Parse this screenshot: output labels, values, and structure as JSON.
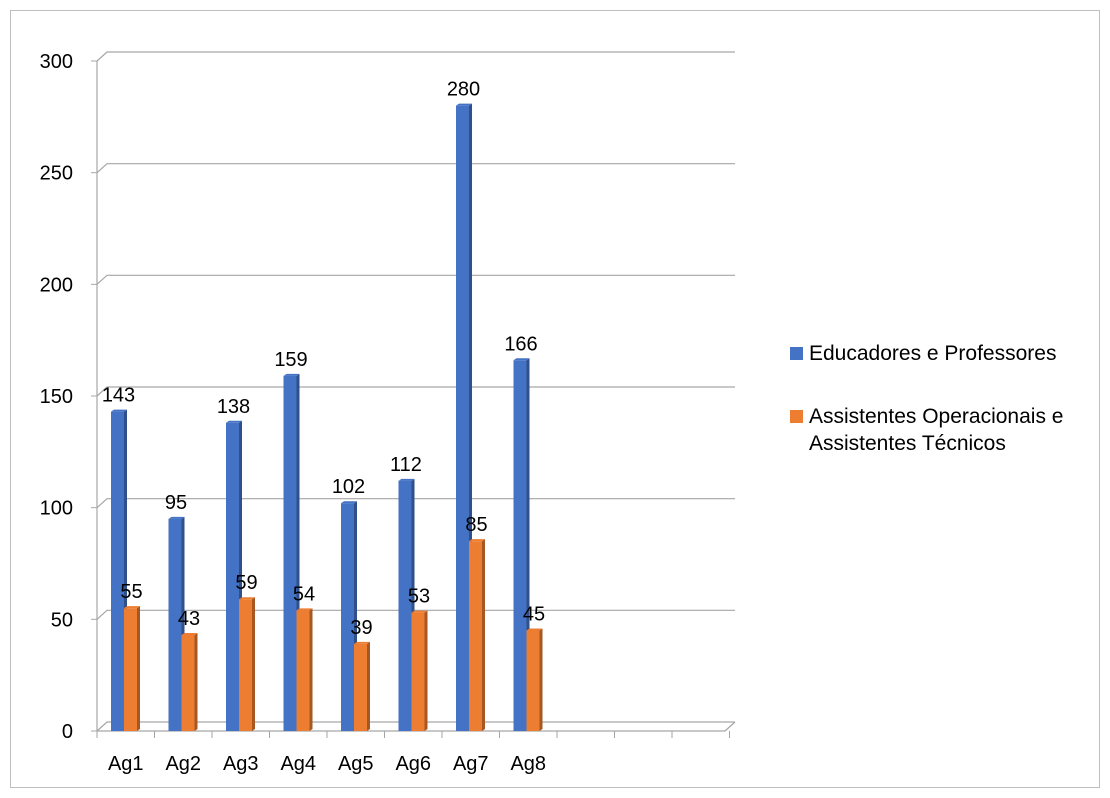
{
  "chart_data": {
    "type": "bar",
    "categories": [
      "Ag1",
      "Ag2",
      "Ag3",
      "Ag4",
      "Ag5",
      "Ag6",
      "Ag7",
      "Ag8"
    ],
    "series": [
      {
        "name": "Educadores e Professores",
        "color": "#4472C4",
        "values": [
          143,
          95,
          138,
          159,
          102,
          112,
          280,
          166
        ]
      },
      {
        "name": "Assistentes Operacionais e Assistentes Técnicos",
        "color": "#ED7D31",
        "values": [
          55,
          43,
          59,
          54,
          39,
          53,
          85,
          45
        ]
      }
    ],
    "yticks": [
      "0",
      "50",
      "100",
      "150",
      "200",
      "250",
      "300"
    ],
    "ylim": [
      0,
      300
    ],
    "grid": true,
    "legend": "right",
    "data_labels": true
  },
  "legend": {
    "series1": "Educadores e Professores",
    "series2_line1": "Assistentes Operacionais e",
    "series2_line2": "Assistentes Técnicos"
  }
}
